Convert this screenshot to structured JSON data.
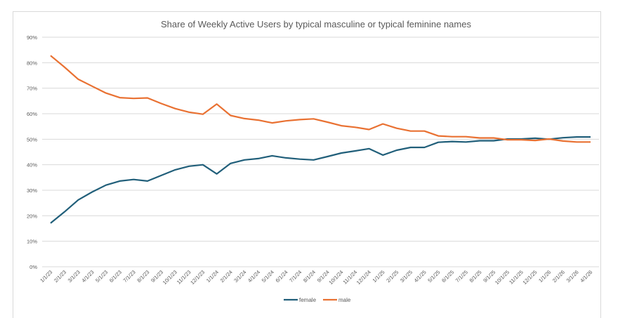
{
  "chart_data": {
    "type": "line",
    "title": "Share of Weekly Active Users by typical masculine or typical feminine names",
    "xlabel": "",
    "ylabel": "",
    "ylim": [
      0,
      90
    ],
    "yticks": [
      "0%",
      "10%",
      "20%",
      "30%",
      "40%",
      "50%",
      "60%",
      "70%",
      "80%",
      "90%"
    ],
    "grid": true,
    "legend": "bottom",
    "categories": [
      "1/1/23",
      "2/1/23",
      "3/1/23",
      "4/1/23",
      "5/1/23",
      "6/1/23",
      "7/1/23",
      "8/1/23",
      "9/1/23",
      "10/1/23",
      "11/1/23",
      "12/1/23",
      "1/1/24",
      "2/1/24",
      "3/1/24",
      "4/1/24",
      "5/1/24",
      "6/1/24",
      "7/1/24",
      "8/1/24",
      "9/1/24",
      "10/1/24",
      "11/1/24",
      "12/1/24",
      "1/1/25",
      "2/1/25",
      "3/1/25",
      "4/1/25",
      "5/1/25",
      "6/1/25",
      "7/1/25",
      "8/1/25",
      "9/1/25",
      "10/1/25",
      "11/1/25",
      "12/1/25",
      "1/1/26",
      "2/1/26",
      "3/1/26",
      "4/1/26"
    ],
    "series": [
      {
        "name": "female",
        "color": "#215f7a",
        "values": [
          17.1,
          21.5,
          26.2,
          29.3,
          32.0,
          33.6,
          34.2,
          33.6,
          35.8,
          38.0,
          39.4,
          40.0,
          36.4,
          40.5,
          41.9,
          42.4,
          43.5,
          42.7,
          42.2,
          41.9,
          43.2,
          44.6,
          45.4,
          46.3,
          43.8,
          45.7,
          46.8,
          46.8,
          48.8,
          49.1,
          48.9,
          49.4,
          49.4,
          50.1,
          50.1,
          50.4,
          50.0,
          50.6,
          50.9,
          50.9
        ]
      },
      {
        "name": "male",
        "color": "#e97132",
        "values": [
          82.8,
          78.3,
          73.5,
          70.8,
          68.1,
          66.3,
          66.0,
          66.2,
          64.0,
          62.0,
          60.6,
          59.8,
          63.8,
          59.3,
          58.1,
          57.5,
          56.4,
          57.2,
          57.7,
          58.0,
          56.7,
          55.3,
          54.7,
          53.8,
          56.0,
          54.3,
          53.2,
          53.2,
          51.3,
          51.0,
          51.0,
          50.5,
          50.5,
          49.8,
          49.8,
          49.5,
          50.1,
          49.3,
          48.9,
          48.9
        ]
      }
    ]
  }
}
